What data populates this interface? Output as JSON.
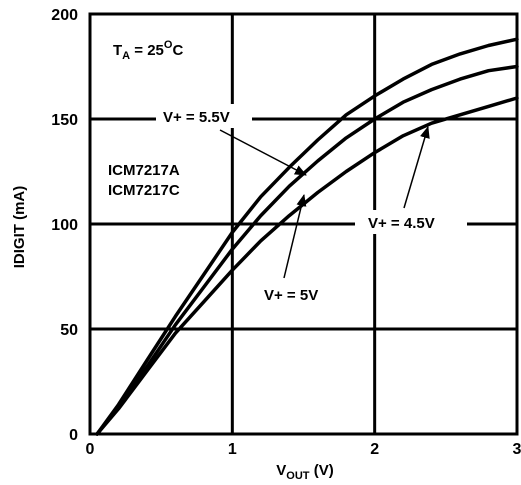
{
  "chart_data": {
    "type": "line",
    "title": "",
    "xlabel": {
      "main": "V",
      "sub": "OUT",
      "unit": " (V)"
    },
    "ylabel": "IDIGIT (mA)",
    "xlim": [
      0,
      3
    ],
    "ylim": [
      0,
      200
    ],
    "x_ticks": [
      0,
      1,
      2,
      3
    ],
    "y_ticks": [
      0,
      50,
      100,
      150,
      200
    ],
    "grid": true,
    "legend": "none",
    "series": [
      {
        "label": "V+ = 5.5V",
        "x": [
          0.05,
          0.2,
          0.4,
          0.6,
          0.8,
          1.0,
          1.2,
          1.4,
          1.6,
          1.8,
          2.0,
          2.2,
          2.4,
          2.6,
          2.8,
          3.0
        ],
        "y": [
          0,
          14,
          35,
          56,
          76,
          96,
          113,
          127,
          140,
          152,
          161,
          169,
          176,
          181,
          185,
          188
        ]
      },
      {
        "label": "V+ = 5V",
        "x": [
          0.05,
          0.2,
          0.4,
          0.6,
          0.8,
          1.0,
          1.2,
          1.4,
          1.6,
          1.8,
          2.0,
          2.2,
          2.4,
          2.6,
          2.8,
          3.0
        ],
        "y": [
          0,
          13,
          32,
          52,
          70,
          88,
          104,
          118,
          130,
          141,
          150,
          158,
          164,
          169,
          173,
          175
        ]
      },
      {
        "label": "V+ = 4.5V",
        "x": [
          0.05,
          0.2,
          0.4,
          0.6,
          0.8,
          1.0,
          1.2,
          1.4,
          1.6,
          1.8,
          2.0,
          2.2,
          2.4,
          2.6,
          2.8,
          3.0
        ],
        "y": [
          0,
          12,
          30,
          48,
          63,
          78,
          92,
          104,
          115,
          125,
          134,
          142,
          148,
          152,
          156,
          160
        ]
      }
    ],
    "annotations": [
      {
        "main": "T",
        "sub": "A",
        "rest": " = 25",
        "sup": "O",
        "tail": "C"
      },
      {
        "text": "ICM7217A"
      },
      {
        "text": "ICM7217C"
      }
    ]
  }
}
